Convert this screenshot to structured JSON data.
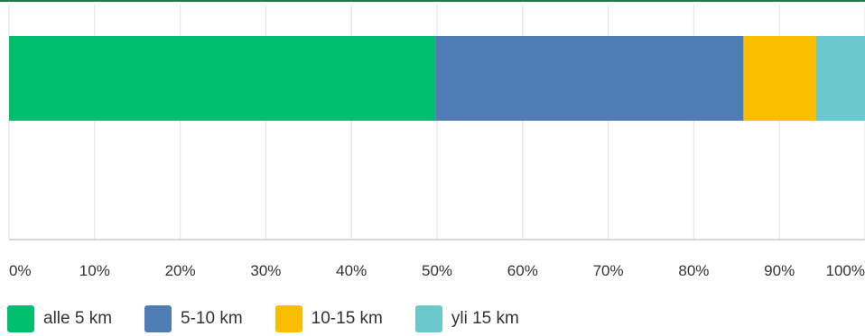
{
  "chart_data": {
    "type": "bar",
    "orientation": "horizontal",
    "stacked": true,
    "categories": [
      ""
    ],
    "series": [
      {
        "name": "alle 5 km",
        "values": [
          49.8
        ],
        "color": "#00bf6f"
      },
      {
        "name": "5-10 km",
        "values": [
          36.0
        ],
        "color": "#507cb6"
      },
      {
        "name": "10-15 km",
        "values": [
          8.5
        ],
        "color": "#f9be00"
      },
      {
        "name": "yli 15 km",
        "values": [
          5.7
        ],
        "color": "#6bc8cd"
      }
    ],
    "xlim": [
      0,
      100
    ],
    "xticks": [
      "0%",
      "10%",
      "20%",
      "30%",
      "40%",
      "50%",
      "60%",
      "70%",
      "80%",
      "90%",
      "100%"
    ],
    "grid": true,
    "legend_position": "bottom-left"
  }
}
